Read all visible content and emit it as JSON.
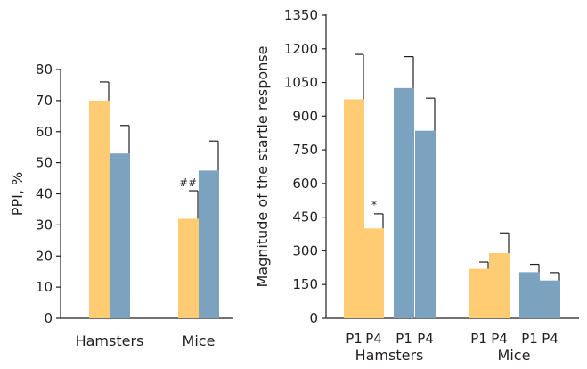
{
  "chart_data": [
    {
      "type": "bar",
      "categories": [
        "Hamsters",
        "Mice"
      ],
      "ylabel": "PPI, %",
      "xlabel": "",
      "ylim": [
        0,
        80
      ],
      "yticks": [
        "0",
        "10",
        "20",
        "30",
        "40",
        "50",
        "60",
        "70",
        "80"
      ],
      "series": [
        {
          "color": "#ffcc73",
          "values": [
            70,
            32
          ],
          "errors": [
            6,
            9
          ]
        },
        {
          "color": "#7ba3c0",
          "values": [
            53,
            47.5
          ],
          "errors": [
            9,
            9.5
          ]
        }
      ],
      "annotations": [
        {
          "text": "##",
          "category": "Mice",
          "series": 0
        }
      ]
    },
    {
      "type": "bar",
      "ylabel": "Magnitude of the startle response",
      "xlabel": "",
      "ylim": [
        0,
        1350
      ],
      "yticks": [
        "0",
        "150",
        "300",
        "450",
        "600",
        "750",
        "900",
        "1050",
        "1200",
        "1350"
      ],
      "groups": [
        "Hamsters",
        "Mice"
      ],
      "bar_labels": [
        "P1",
        "P4",
        "P1",
        "P4",
        "P1",
        "P4",
        "P1",
        "P4"
      ],
      "bars": [
        {
          "group": "Hamsters",
          "label": "P1",
          "color": "#ffcc73",
          "value": 975,
          "error": 200
        },
        {
          "group": "Hamsters",
          "label": "P4",
          "color": "#ffcc73",
          "value": 400,
          "error": 65
        },
        {
          "group": "Hamsters",
          "label": "P1",
          "color": "#7ba3c0",
          "value": 1025,
          "error": 140
        },
        {
          "group": "Hamsters",
          "label": "P4",
          "color": "#7ba3c0",
          "value": 835,
          "error": 145
        },
        {
          "group": "Mice",
          "label": "P1",
          "color": "#ffcc73",
          "value": 220,
          "error": 30
        },
        {
          "group": "Mice",
          "label": "P4",
          "color": "#ffcc73",
          "value": 290,
          "error": 90
        },
        {
          "group": "Mice",
          "label": "P1",
          "color": "#7ba3c0",
          "value": 205,
          "error": 35
        },
        {
          "group": "Mice",
          "label": "P4",
          "color": "#7ba3c0",
          "value": 168,
          "error": 35
        }
      ],
      "annotations": [
        {
          "text": "*",
          "bar": 1
        }
      ]
    }
  ]
}
